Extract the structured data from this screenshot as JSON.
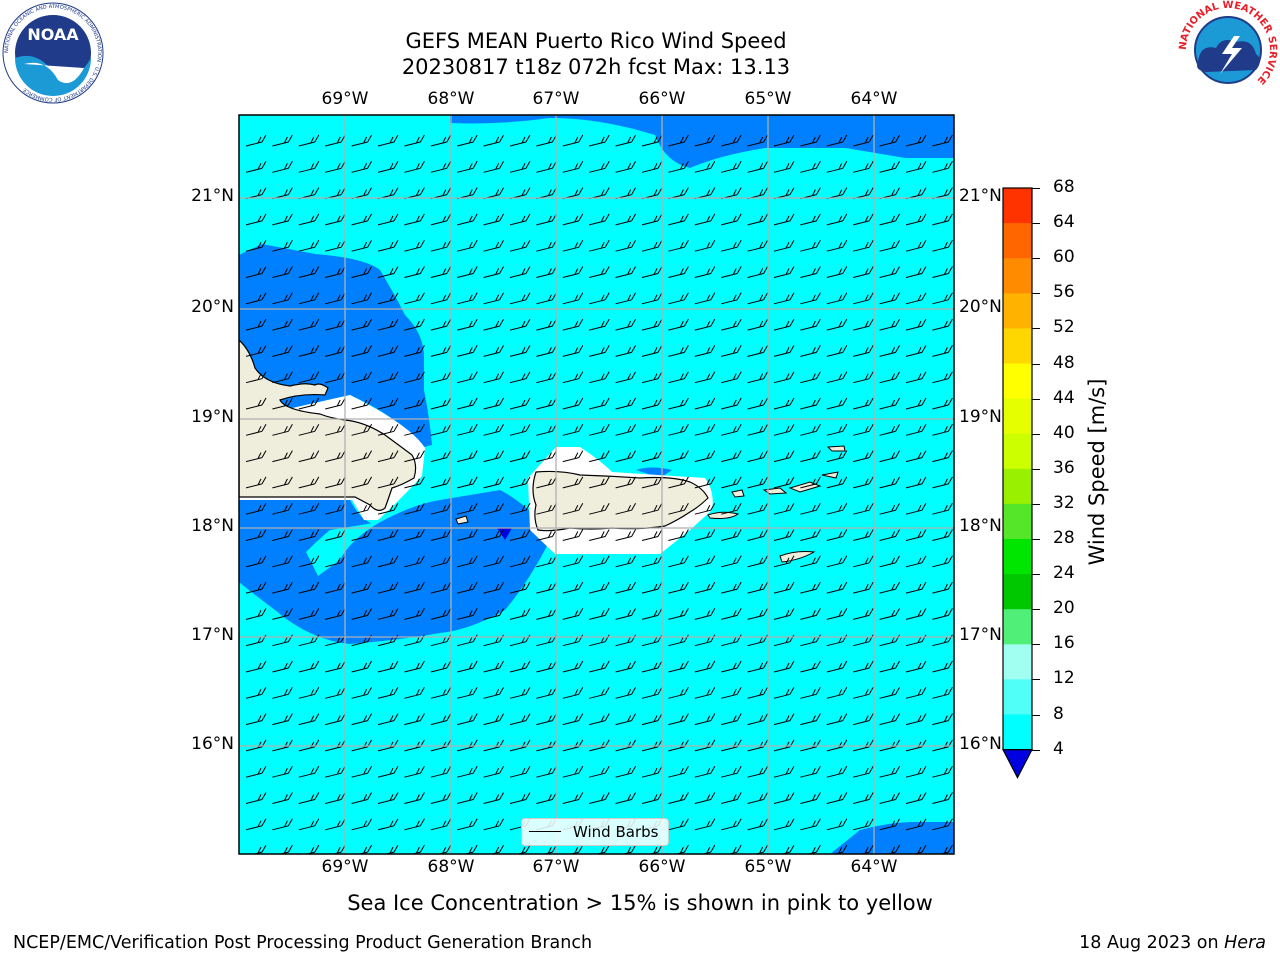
{
  "title": {
    "line1": "GEFS MEAN Puerto Rico Wind Speed",
    "line2": "20230817 t18z 072h fcst   Max: 13.13"
  },
  "logos": {
    "noaa_text": "NOAA",
    "noaa_ring_text": "NATIONAL OCEANIC AND ATMOSPHERIC ADMINISTRATION · U.S. DEPARTMENT OF COMMERCE",
    "nws_ring_text": "NATIONAL WEATHER SERVICE"
  },
  "axes": {
    "lon_labels": [
      "69°W",
      "68°W",
      "67°W",
      "66°W",
      "65°W",
      "64°W"
    ],
    "lat_labels": [
      "21°N",
      "20°N",
      "19°N",
      "18°N",
      "17°N",
      "16°N"
    ]
  },
  "legend": {
    "label": "Wind Barbs"
  },
  "colorbar": {
    "label": "Wind Speed [m/s]",
    "ticks": [
      "68",
      "64",
      "60",
      "56",
      "52",
      "48",
      "44",
      "40",
      "36",
      "32",
      "28",
      "24",
      "20",
      "16",
      "12",
      "8",
      "4"
    ],
    "colors": [
      "#ff0000",
      "#ff3300",
      "#ff6600",
      "#ff8c00",
      "#ffb300",
      "#ffd700",
      "#ffff00",
      "#e6ff00",
      "#ccff00",
      "#99f000",
      "#55e62a",
      "#00e600",
      "#00c800",
      "#50f078",
      "#a0fff0",
      "#50fff8",
      "#00ffff",
      "#0080ff",
      "#0000e0"
    ],
    "under_color": "#0000e0"
  },
  "field_colors": {
    "cyan": "#00ffff",
    "blue": "#0080ff",
    "land": "#efeddc"
  },
  "notes": {
    "sea_ice": "Sea Ice Concentration > 15% is shown in pink to yellow"
  },
  "footer": {
    "left": "NCEP/EMC/Verification Post Processing Product Generation Branch",
    "right_date": "18 Aug 2023 on ",
    "right_machine": "Hera"
  }
}
